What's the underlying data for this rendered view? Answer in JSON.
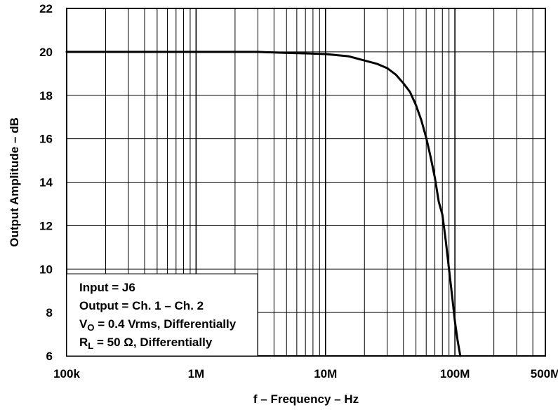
{
  "chart_data": {
    "type": "line",
    "xlabel": "f – Frequency – Hz",
    "ylabel": "Output Amplitude – dB",
    "x_scale": "log",
    "xlim": [
      100000,
      500000000
    ],
    "ylim": [
      6,
      22
    ],
    "grid": true,
    "x_ticks": [
      {
        "value": 100000,
        "label": "100k"
      },
      {
        "value": 1000000,
        "label": "1M"
      },
      {
        "value": 10000000,
        "label": "10M"
      },
      {
        "value": 100000000,
        "label": "100M"
      },
      {
        "value": 500000000,
        "label": "500M"
      }
    ],
    "y_ticks": [
      {
        "value": 6,
        "label": "6"
      },
      {
        "value": 8,
        "label": "8"
      },
      {
        "value": 10,
        "label": "10"
      },
      {
        "value": 12,
        "label": "12"
      },
      {
        "value": 14,
        "label": "14"
      },
      {
        "value": 16,
        "label": "16"
      },
      {
        "value": 18,
        "label": "18"
      },
      {
        "value": 20,
        "label": "20"
      },
      {
        "value": 22,
        "label": "22"
      }
    ],
    "series": [
      {
        "color": "#000000",
        "x": [
          100000,
          150000,
          200000,
          300000,
          500000,
          700000,
          1000000,
          2000000,
          3000000,
          5000000,
          7000000,
          10000000,
          15000000,
          20000000,
          25000000,
          30000000,
          35000000,
          40000000,
          45000000,
          50000000,
          55000000,
          60000000,
          65000000,
          70000000,
          75000000,
          80000000,
          85000000,
          90000000,
          95000000,
          100000000,
          105000000,
          110000000
        ],
        "y": [
          20.0,
          20.0,
          20.0,
          20.0,
          20.0,
          20.0,
          20.0,
          20.0,
          20.0,
          19.95,
          19.93,
          19.9,
          19.8,
          19.6,
          19.45,
          19.25,
          18.95,
          18.55,
          18.15,
          17.55,
          16.85,
          16.05,
          15.15,
          14.2,
          13.1,
          12.5,
          11.3,
          10.0,
          8.8,
          7.6,
          6.7,
          6.0
        ]
      }
    ],
    "annotations": [
      {
        "parts": [
          {
            "t": "Input = J6"
          }
        ]
      },
      {
        "parts": [
          {
            "t": "Output = Ch. 1 – Ch. 2"
          }
        ]
      },
      {
        "parts": [
          {
            "t": "V"
          },
          {
            "t": "O",
            "sub": true
          },
          {
            "t": " = 0.4 Vrms, Differentially"
          }
        ]
      },
      {
        "parts": [
          {
            "t": "R"
          },
          {
            "t": "L",
            "sub": true
          },
          {
            "t": " = 50 Ω, Differentially"
          }
        ]
      }
    ]
  }
}
